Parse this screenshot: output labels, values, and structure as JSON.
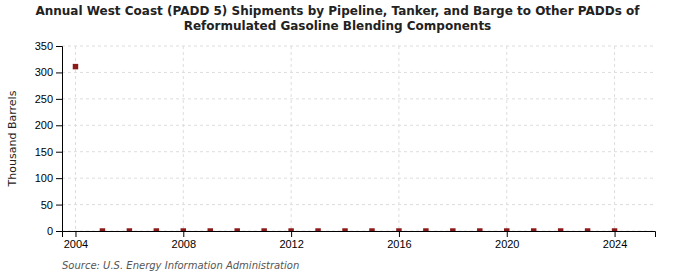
{
  "chart_data": {
    "type": "scatter",
    "title": "Annual West Coast (PADD 5) Shipments by Pipeline, Tanker, and Barge to Other PADDs of\nReformulated Gasoline Blending Components",
    "ylabel": "Thousand Barrels",
    "annotation": "Source: U.S. Energy Information Administration",
    "x": [
      2004,
      2005,
      2006,
      2007,
      2008,
      2009,
      2010,
      2011,
      2012,
      2013,
      2014,
      2015,
      2016,
      2017,
      2018,
      2019,
      2020,
      2021,
      2022,
      2023,
      2024
    ],
    "values": [
      311,
      0,
      0,
      0,
      0,
      0,
      0,
      0,
      0,
      0,
      0,
      0,
      0,
      0,
      0,
      0,
      0,
      0,
      0,
      0,
      0
    ],
    "color": "#8b1a1a",
    "marker": "square",
    "xlim": [
      2003.5,
      2025.5
    ],
    "ylim": [
      0,
      350
    ],
    "xticks": [
      2004,
      2008,
      2012,
      2016,
      2020,
      2024
    ],
    "yticks": [
      0,
      50,
      100,
      150,
      200,
      250,
      300,
      350
    ],
    "grid": true
  }
}
